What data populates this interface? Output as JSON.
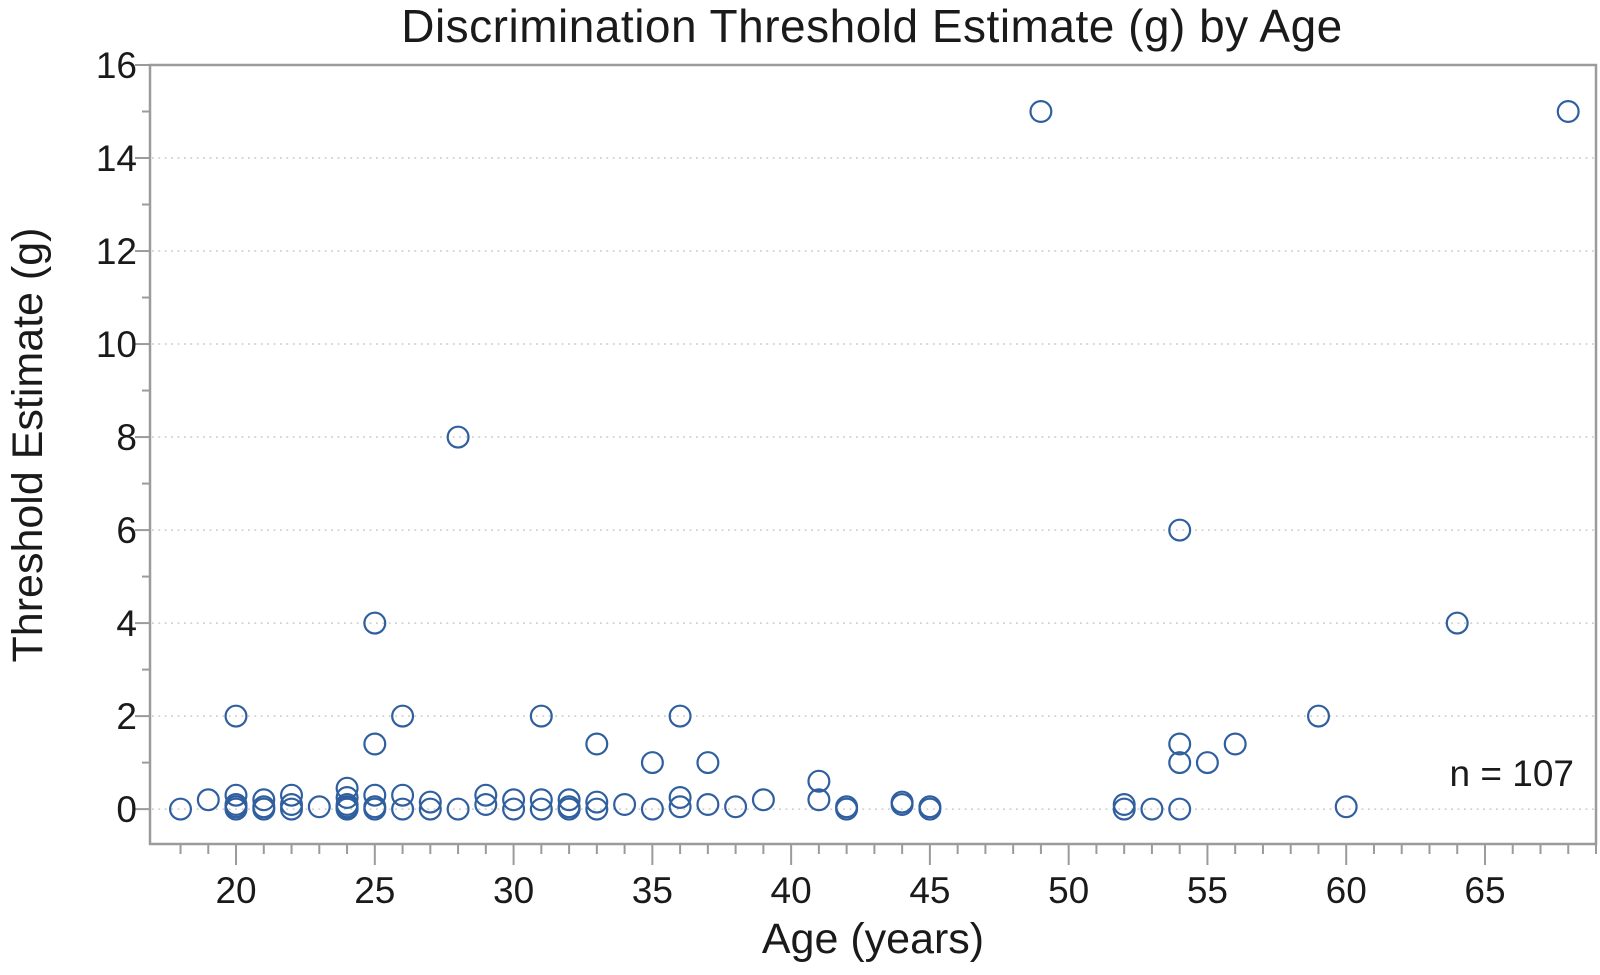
{
  "chart_data": {
    "type": "scatter",
    "title": "Discrimination Threshold Estimate (g) by Age",
    "xlabel": "Age (years)",
    "ylabel": "Threshold Estimate (g)",
    "annotation": "n = 107",
    "legend": "none",
    "grid": "horizontal dotted at even y values",
    "xlim": [
      16.9,
      69.0
    ],
    "ylim": [
      -0.75,
      16
    ],
    "x_major_ticks": [
      20,
      25,
      30,
      35,
      40,
      45,
      50,
      55,
      60,
      65
    ],
    "x_minor_tick_step": 1,
    "x_minor_tick_range": [
      18,
      69
    ],
    "y_major_ticks": [
      0,
      2,
      4,
      6,
      8,
      10,
      12,
      14,
      16
    ],
    "y_minor_ticks": [
      1,
      3,
      5,
      7,
      9,
      11,
      13,
      15
    ],
    "gridline_values": [
      0,
      2,
      4,
      6,
      8,
      10,
      12,
      14
    ],
    "marker": {
      "shape": "open-circle",
      "color": "#2f5f9f",
      "radius_px": 10.4,
      "stroke_px": 2.2
    },
    "colors": {
      "frame": "#9b9b9b",
      "grid": "#c9c9c9",
      "text": "#1a1a1a",
      "background": "#ffffff"
    },
    "points": [
      [
        18,
        0
      ],
      [
        19,
        0.2
      ],
      [
        20,
        2
      ],
      [
        20,
        0.3
      ],
      [
        20,
        0.1
      ],
      [
        20,
        0.05
      ],
      [
        20,
        0
      ],
      [
        21,
        0.2
      ],
      [
        21,
        0.05
      ],
      [
        21,
        0
      ],
      [
        22,
        0.3
      ],
      [
        22,
        0.1
      ],
      [
        22,
        0
      ],
      [
        23,
        0.05
      ],
      [
        24,
        0.45
      ],
      [
        24,
        0.25
      ],
      [
        24,
        0.1
      ],
      [
        24,
        0.05
      ],
      [
        24,
        0.02
      ],
      [
        24,
        0
      ],
      [
        25,
        4
      ],
      [
        25,
        1.4
      ],
      [
        25,
        0.3
      ],
      [
        25,
        0.05
      ],
      [
        25,
        0
      ],
      [
        26,
        2
      ],
      [
        26,
        0.3
      ],
      [
        26,
        0
      ],
      [
        27,
        0.15
      ],
      [
        27,
        0
      ],
      [
        28,
        8
      ],
      [
        28,
        0
      ],
      [
        29,
        0.3
      ],
      [
        29,
        0.1
      ],
      [
        30,
        0.2
      ],
      [
        30,
        0
      ],
      [
        31,
        2
      ],
      [
        31,
        0.2
      ],
      [
        31,
        0
      ],
      [
        32,
        0.2
      ],
      [
        32,
        0.05
      ],
      [
        32,
        0
      ],
      [
        33,
        1.4
      ],
      [
        33,
        0.15
      ],
      [
        33,
        0
      ],
      [
        34,
        0.1
      ],
      [
        35,
        1
      ],
      [
        35,
        0
      ],
      [
        36,
        2
      ],
      [
        36,
        0.25
      ],
      [
        36,
        0.05
      ],
      [
        37,
        1
      ],
      [
        37,
        0.1
      ],
      [
        38,
        0.05
      ],
      [
        39,
        0.2
      ],
      [
        41,
        0.6
      ],
      [
        41,
        0.2
      ],
      [
        42,
        0.05
      ],
      [
        42,
        0
      ],
      [
        44,
        0.15
      ],
      [
        44,
        0.1
      ],
      [
        45,
        0.05
      ],
      [
        45,
        0
      ],
      [
        49,
        15
      ],
      [
        52,
        0.1
      ],
      [
        52,
        0
      ],
      [
        53,
        0
      ],
      [
        54,
        6
      ],
      [
        54,
        1.4
      ],
      [
        54,
        1
      ],
      [
        54,
        0
      ],
      [
        55,
        1
      ],
      [
        56,
        1.4
      ],
      [
        59,
        2
      ],
      [
        60,
        0.05
      ],
      [
        64,
        4
      ],
      [
        68,
        15
      ]
    ]
  }
}
